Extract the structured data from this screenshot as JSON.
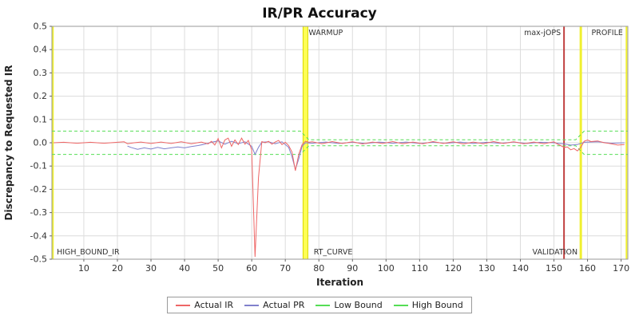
{
  "title": "IR/PR Accuracy",
  "legend": {
    "items": [
      {
        "label": "Actual IR",
        "color": "#ee6666"
      },
      {
        "label": "Actual PR",
        "color": "#8080cc"
      },
      {
        "label": "Low Bound",
        "color": "#55dd55"
      },
      {
        "label": "High Bound",
        "color": "#55dd55"
      }
    ]
  },
  "chart_data": {
    "type": "line",
    "title": "IR/PR Accuracy",
    "xlabel": "Iteration",
    "ylabel": "Discrepancy to Requested IR",
    "xlim": [
      0.5,
      172
    ],
    "ylim": [
      -0.5,
      0.5
    ],
    "x_ticks": [
      10,
      20,
      30,
      40,
      50,
      60,
      70,
      80,
      90,
      100,
      110,
      120,
      130,
      140,
      150,
      160,
      170
    ],
    "y_ticks": [
      0.5,
      0.4,
      0.3,
      0.2,
      0.1,
      0.0,
      -0.1,
      -0.2,
      -0.3,
      -0.4,
      -0.5
    ],
    "grid": true,
    "legend_position": "bottom",
    "colors": {
      "grid": "#dcdcdc",
      "plot_border": "#9a9a9a",
      "tick_text": "#333333",
      "annotation_text": "#333333"
    },
    "series": [
      {
        "name": "High Bound",
        "color": "#55dd55",
        "dash": "4,3",
        "width": 1,
        "points": [
          [
            0.5,
            0.05
          ],
          [
            74.5,
            0.05
          ],
          [
            77,
            0.013
          ],
          [
            156.5,
            0.013
          ],
          [
            159,
            0.05
          ],
          [
            172,
            0.05
          ]
        ]
      },
      {
        "name": "Low Bound",
        "color": "#55dd55",
        "dash": "4,3",
        "width": 1,
        "points": [
          [
            0.5,
            -0.05
          ],
          [
            74.5,
            -0.05
          ],
          [
            77,
            -0.013
          ],
          [
            156.5,
            -0.013
          ],
          [
            159,
            -0.05
          ],
          [
            172,
            -0.05
          ]
        ]
      },
      {
        "name": "Actual PR",
        "color": "#8080cc",
        "dash": "",
        "width": 1,
        "points": [
          [
            23,
            -0.014
          ],
          [
            24,
            -0.02
          ],
          [
            26,
            -0.028
          ],
          [
            28,
            -0.022
          ],
          [
            30,
            -0.027
          ],
          [
            32,
            -0.02
          ],
          [
            34,
            -0.026
          ],
          [
            36,
            -0.022
          ],
          [
            38,
            -0.018
          ],
          [
            40,
            -0.022
          ],
          [
            42,
            -0.016
          ],
          [
            44,
            -0.012
          ],
          [
            46,
            -0.006
          ],
          [
            48,
            0.002
          ],
          [
            50,
            0.008
          ],
          [
            52,
            -0.006
          ],
          [
            54,
            0.006
          ],
          [
            56,
            -0.004
          ],
          [
            58,
            0.004
          ],
          [
            60,
            -0.015
          ],
          [
            61,
            -0.05
          ],
          [
            62,
            -0.02
          ],
          [
            63,
            0.002
          ],
          [
            65,
            0.004
          ],
          [
            67,
            -0.004
          ],
          [
            69,
            0.004
          ],
          [
            71,
            -0.02
          ],
          [
            72,
            -0.06
          ],
          [
            73,
            -0.115
          ],
          [
            74,
            -0.07
          ],
          [
            75,
            -0.015
          ],
          [
            76,
            0
          ],
          [
            78,
            -0.002
          ],
          [
            82,
            0.003
          ],
          [
            86,
            -0.003
          ],
          [
            90,
            0.002
          ],
          [
            94,
            -0.003
          ],
          [
            98,
            0.003
          ],
          [
            102,
            -0.002
          ],
          [
            106,
            0.003
          ],
          [
            110,
            -0.003
          ],
          [
            114,
            0.002
          ],
          [
            118,
            -0.002
          ],
          [
            122,
            0.003
          ],
          [
            126,
            -0.003
          ],
          [
            130,
            0.002
          ],
          [
            134,
            -0.002
          ],
          [
            138,
            0.003
          ],
          [
            142,
            -0.003
          ],
          [
            146,
            0.002
          ],
          [
            150,
            0
          ],
          [
            153,
            -0.005
          ],
          [
            155,
            -0.01
          ],
          [
            157,
            -0.008
          ],
          [
            159,
            0.002
          ],
          [
            163,
            0.004
          ],
          [
            167,
            -0.002
          ],
          [
            171,
            0
          ]
        ]
      },
      {
        "name": "Actual IR",
        "color": "#ee6666",
        "dash": "",
        "width": 1,
        "points": [
          [
            1,
            0
          ],
          [
            4,
            0.002
          ],
          [
            8,
            -0.002
          ],
          [
            12,
            0.002
          ],
          [
            16,
            -0.002
          ],
          [
            20,
            0.002
          ],
          [
            22,
            0.004
          ],
          [
            23,
            -0.004
          ],
          [
            25,
            0
          ],
          [
            27,
            0.003
          ],
          [
            30,
            -0.003
          ],
          [
            33,
            0.003
          ],
          [
            36,
            -0.003
          ],
          [
            39,
            0.004
          ],
          [
            42,
            -0.004
          ],
          [
            45,
            0.003
          ],
          [
            47,
            -0.005
          ],
          [
            48,
            0.006
          ],
          [
            49,
            -0.01
          ],
          [
            50,
            0.018
          ],
          [
            51,
            -0.022
          ],
          [
            52,
            0.012
          ],
          [
            53,
            0.02
          ],
          [
            54,
            -0.015
          ],
          [
            55,
            0.012
          ],
          [
            56,
            -0.008
          ],
          [
            57,
            0.02
          ],
          [
            58,
            -0.006
          ],
          [
            59,
            0.01
          ],
          [
            60,
            -0.03
          ],
          [
            61,
            -0.49
          ],
          [
            62,
            -0.15
          ],
          [
            63,
            0.005
          ],
          [
            64,
            0
          ],
          [
            65,
            0.006
          ],
          [
            66,
            -0.006
          ],
          [
            67,
            0.003
          ],
          [
            68,
            0.01
          ],
          [
            69,
            -0.008
          ],
          [
            70,
            0.002
          ],
          [
            71,
            -0.012
          ],
          [
            72,
            -0.04
          ],
          [
            73,
            -0.12
          ],
          [
            74,
            -0.05
          ],
          [
            75,
            -0.008
          ],
          [
            76,
            0.006
          ],
          [
            77,
            0.002
          ],
          [
            78,
            0.004
          ],
          [
            81,
            -0.004
          ],
          [
            84,
            0.005
          ],
          [
            87,
            -0.003
          ],
          [
            90,
            0.004
          ],
          [
            93,
            -0.005
          ],
          [
            96,
            0.003
          ],
          [
            99,
            -0.003
          ],
          [
            102,
            0.005
          ],
          [
            105,
            -0.004
          ],
          [
            108,
            0.003
          ],
          [
            111,
            -0.004
          ],
          [
            114,
            0.005
          ],
          [
            117,
            -0.003
          ],
          [
            120,
            0.004
          ],
          [
            123,
            -0.005
          ],
          [
            126,
            0.003
          ],
          [
            129,
            -0.004
          ],
          [
            132,
            0.005
          ],
          [
            135,
            -0.003
          ],
          [
            138,
            0.004
          ],
          [
            141,
            -0.004
          ],
          [
            144,
            0.003
          ],
          [
            147,
            -0.004
          ],
          [
            150,
            0.004
          ],
          [
            151,
            -0.005
          ],
          [
            152,
            -0.012
          ],
          [
            153,
            -0.02
          ],
          [
            154,
            -0.018
          ],
          [
            155,
            -0.03
          ],
          [
            156,
            -0.025
          ],
          [
            157,
            -0.035
          ],
          [
            158,
            -0.02
          ],
          [
            159,
            0.006
          ],
          [
            160,
            0.012
          ],
          [
            161,
            0.005
          ],
          [
            163,
            0.008
          ],
          [
            165,
            0
          ],
          [
            167,
            -0.004
          ],
          [
            169,
            -0.01
          ],
          [
            171,
            -0.008
          ]
        ]
      }
    ],
    "vlines": [
      {
        "x": 0.8,
        "w": 2,
        "color": "#f0f030",
        "border": ""
      },
      {
        "x": 76,
        "w": 6,
        "color": "#ffff55",
        "border": "#d8d800"
      },
      {
        "x": 153,
        "w": 2,
        "color": "#c04040",
        "border": ""
      },
      {
        "x": 158,
        "w": 3,
        "color": "#f0f030",
        "border": ""
      },
      {
        "x": 171.6,
        "w": 2,
        "color": "#f0f030",
        "border": ""
      }
    ],
    "annotations": [
      {
        "text": "WARMUP",
        "x": 76,
        "pos": "top",
        "anchor": "start"
      },
      {
        "text": "RT_CURVE",
        "x": 77.5,
        "pos": "bottom",
        "anchor": "start"
      },
      {
        "text": "max-jOPS",
        "x": 153,
        "pos": "top",
        "anchor": "end"
      },
      {
        "text": "VALIDATION",
        "x": 158,
        "pos": "bottom",
        "anchor": "end"
      },
      {
        "text": "PROFILE",
        "x": 171.5,
        "pos": "top",
        "anchor": "end"
      },
      {
        "text": "HIGH_BOUND_IR",
        "x": 1,
        "pos": "bottom",
        "anchor": "start"
      }
    ]
  }
}
